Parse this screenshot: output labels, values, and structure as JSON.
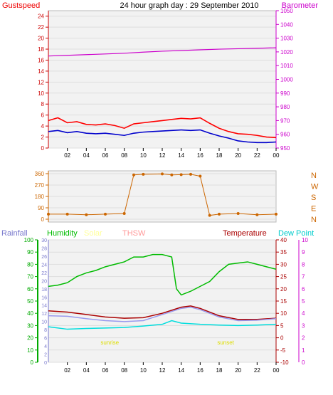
{
  "chart_data": [
    {
      "type": "line",
      "title": "24 hour graph day : 29 September 2010",
      "left_label": "Gustspeed",
      "right_label": "Barometer",
      "left_ticks": [
        "0",
        "2",
        "4",
        "6",
        "8",
        "10",
        "12",
        "14",
        "16",
        "18",
        "20",
        "22",
        "24"
      ],
      "right_ticks": [
        "950",
        "960",
        "970",
        "980",
        "990",
        "1000",
        "1010",
        "1020",
        "1030",
        "1040",
        "1050"
      ],
      "x_ticks": [
        "02",
        "04",
        "06",
        "08",
        "10",
        "12",
        "14",
        "16",
        "18",
        "20",
        "22",
        "00"
      ],
      "ylim_left": [
        0,
        25
      ],
      "ylim_right": [
        950,
        1050
      ],
      "series": [
        {
          "axis": "right",
          "color": "#cc00cc",
          "x": [
            0,
            2,
            4,
            6,
            8,
            10,
            12,
            14,
            16,
            18,
            20,
            22,
            24
          ],
          "values": [
            1017,
            1017.5,
            1018,
            1018.5,
            1019,
            1019.8,
            1020.5,
            1021,
            1021.5,
            1022,
            1022.3,
            1022.6,
            1023
          ]
        },
        {
          "axis": "left",
          "color": "#ff0000",
          "x": [
            0,
            1,
            2,
            3,
            4,
            5,
            6,
            7,
            8,
            9,
            10,
            11,
            12,
            13,
            14,
            15,
            16,
            17,
            18,
            19,
            20,
            21,
            22,
            23,
            24
          ],
          "values": [
            5,
            5.5,
            4.6,
            4.8,
            4.3,
            4.2,
            4.4,
            4.1,
            3.6,
            4.4,
            4.6,
            4.8,
            5,
            5.2,
            5.4,
            5.3,
            5.5,
            4.5,
            3.6,
            3,
            2.6,
            2.5,
            2.3,
            2,
            1.9
          ]
        },
        {
          "axis": "left",
          "color": "#0000cc",
          "x": [
            0,
            1,
            2,
            3,
            4,
            5,
            6,
            7,
            8,
            9,
            10,
            11,
            12,
            13,
            14,
            15,
            16,
            17,
            18,
            19,
            20,
            21,
            22,
            23,
            24
          ],
          "values": [
            3,
            3.2,
            2.8,
            3,
            2.7,
            2.6,
            2.7,
            2.5,
            2.3,
            2.7,
            2.9,
            3,
            3.1,
            3.2,
            3.3,
            3.2,
            3.3,
            2.7,
            2.2,
            1.8,
            1.3,
            1.1,
            1,
            1,
            1.1
          ]
        }
      ]
    },
    {
      "type": "scatter",
      "left_ticks": [
        "0",
        "90",
        "180",
        "270",
        "360"
      ],
      "compass": [
        "N",
        "W",
        "S",
        "E",
        "N"
      ],
      "ylim": [
        0,
        360
      ],
      "series": [
        {
          "color": "#cc6600",
          "x": [
            0,
            2,
            4,
            6,
            8,
            9,
            10,
            12,
            13,
            14,
            15,
            16,
            17,
            18,
            20,
            22,
            24
          ],
          "values": [
            40,
            40,
            35,
            40,
            45,
            350,
            355,
            358,
            350,
            352,
            355,
            340,
            30,
            40,
            45,
            35,
            40
          ]
        }
      ]
    },
    {
      "type": "line",
      "labels": {
        "rainfall": "Rainfall",
        "humidity": "Humidity",
        "solar": "Solar",
        "thsw": "THSW",
        "temperature": "Temperature",
        "dewpoint": "Dew Point"
      },
      "humidity_ticks": [
        "0",
        "10",
        "20",
        "30",
        "40",
        "50",
        "60",
        "70",
        "80",
        "90",
        "100"
      ],
      "rain_ticks": [
        "0",
        "2",
        "4",
        "6",
        "8",
        "10",
        "12",
        "14",
        "16",
        "18",
        "20",
        "22",
        "24",
        "26",
        "28",
        "30"
      ],
      "temp_ticks": [
        "-10",
        "-5",
        "0",
        "5",
        "10",
        "15",
        "20",
        "25",
        "30",
        "35",
        "40"
      ],
      "uv_ticks": [
        "0",
        "1",
        "2",
        "3",
        "4",
        "5",
        "6",
        "7",
        "8",
        "9",
        "10"
      ],
      "x_ticks": [
        "02",
        "04",
        "06",
        "08",
        "10",
        "12",
        "14",
        "16",
        "18",
        "20",
        "22",
        "00"
      ],
      "annotations": [
        "sunrise",
        "sunset"
      ],
      "ylim_humidity": [
        0,
        100
      ],
      "ylim_temperature": [
        -10,
        40
      ],
      "series": [
        {
          "axis": "humidity",
          "color": "#00bb00",
          "x": [
            0,
            1,
            2,
            3,
            4,
            5,
            6,
            7,
            8,
            9,
            10,
            11,
            12,
            13,
            13.5,
            14,
            15,
            16,
            17,
            18,
            19,
            20,
            21,
            22,
            23,
            24
          ],
          "values": [
            62,
            63,
            65,
            70,
            73,
            75,
            78,
            80,
            82,
            86,
            86,
            88,
            88,
            86,
            60,
            55,
            58,
            62,
            66,
            74,
            80,
            81,
            82,
            80,
            78,
            76
          ]
        },
        {
          "axis": "temperature",
          "color": "#aa0000",
          "x": [
            0,
            2,
            4,
            6,
            8,
            10,
            12,
            14,
            15,
            16,
            18,
            20,
            22,
            24
          ],
          "values": [
            11,
            10.5,
            9.5,
            8.5,
            8,
            8.2,
            10,
            12.5,
            13,
            12,
            9,
            7.5,
            7.5,
            8
          ]
        },
        {
          "axis": "temperature",
          "color": "#9999ee",
          "x": [
            0,
            2,
            4,
            6,
            8,
            10,
            12,
            14,
            15,
            16,
            18,
            20,
            22,
            24
          ],
          "values": [
            9,
            8.8,
            7.8,
            7,
            6.6,
            7,
            9.5,
            12,
            12.5,
            11.5,
            8.5,
            7,
            7.2,
            7.8
          ]
        },
        {
          "axis": "temperature",
          "color": "#00dddd",
          "x": [
            0,
            2,
            4,
            6,
            8,
            10,
            12,
            13,
            14,
            16,
            18,
            20,
            22,
            24
          ],
          "values": [
            4.5,
            3.5,
            3.8,
            4,
            4.2,
            4.8,
            5.5,
            7,
            6,
            5.5,
            5.2,
            5,
            5.2,
            5.5
          ]
        }
      ]
    }
  ]
}
